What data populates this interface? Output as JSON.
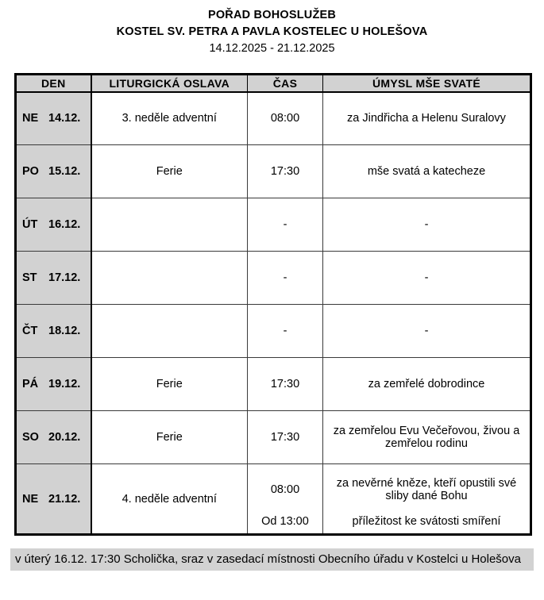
{
  "header": {
    "title": "POŘAD BOHOSLUŽEB",
    "subtitle": "KOSTEL SV. PETRA A PAVLA KOSTELEC U HOLEŠOVA",
    "date_range": "14.12.2025 - 21.12.2025"
  },
  "table": {
    "columns": [
      "DEN",
      "LITURGICKÁ OSLAVA",
      "ČAS",
      "ÚMYSL MŠE SVATÉ"
    ],
    "rows": [
      {
        "day": "NE",
        "date": "14.12.",
        "celebration": "3. neděle adventní",
        "time": "08:00",
        "intention": "za Jindřicha a Helenu Suralovy"
      },
      {
        "day": "PO",
        "date": "15.12.",
        "celebration": "Ferie",
        "time": "17:30",
        "intention": "mše svatá a katecheze"
      },
      {
        "day": "ÚT",
        "date": "16.12.",
        "celebration": "",
        "time": "-",
        "intention": "-"
      },
      {
        "day": "ST",
        "date": "17.12.",
        "celebration": "",
        "time": "-",
        "intention": "-"
      },
      {
        "day": "ČT",
        "date": "18.12.",
        "celebration": "",
        "time": "-",
        "intention": "-"
      },
      {
        "day": "PÁ",
        "date": "19.12.",
        "celebration": "Ferie",
        "time": "17:30",
        "intention": "za zemřelé dobrodince"
      },
      {
        "day": "SO",
        "date": "20.12.",
        "celebration": "Ferie",
        "time": "17:30",
        "intention": "za zemřelou Evu Večeřovou, živou a zemřelou rodinu"
      },
      {
        "day": "NE",
        "date": "21.12.",
        "celebration": "4. neděle adventní",
        "time": "08:00",
        "intention": "za nevěrné kněze, kteří opustili své sliby dané Bohu",
        "time2": "Od 13:00",
        "intention2": "příležitost ke svátosti smíření"
      }
    ]
  },
  "footer": {
    "note": "v úterý 16.12. 17:30 Scholička, sraz v zasedací místnosti Obecního úřadu v Kostelci u Holešova"
  },
  "colors": {
    "header_bg": "#d2d2d2",
    "day_column_bg": "#d2d2d2",
    "note_bg": "#d2d2d2",
    "border": "#000000",
    "text": "#000000",
    "page_bg": "#ffffff"
  }
}
